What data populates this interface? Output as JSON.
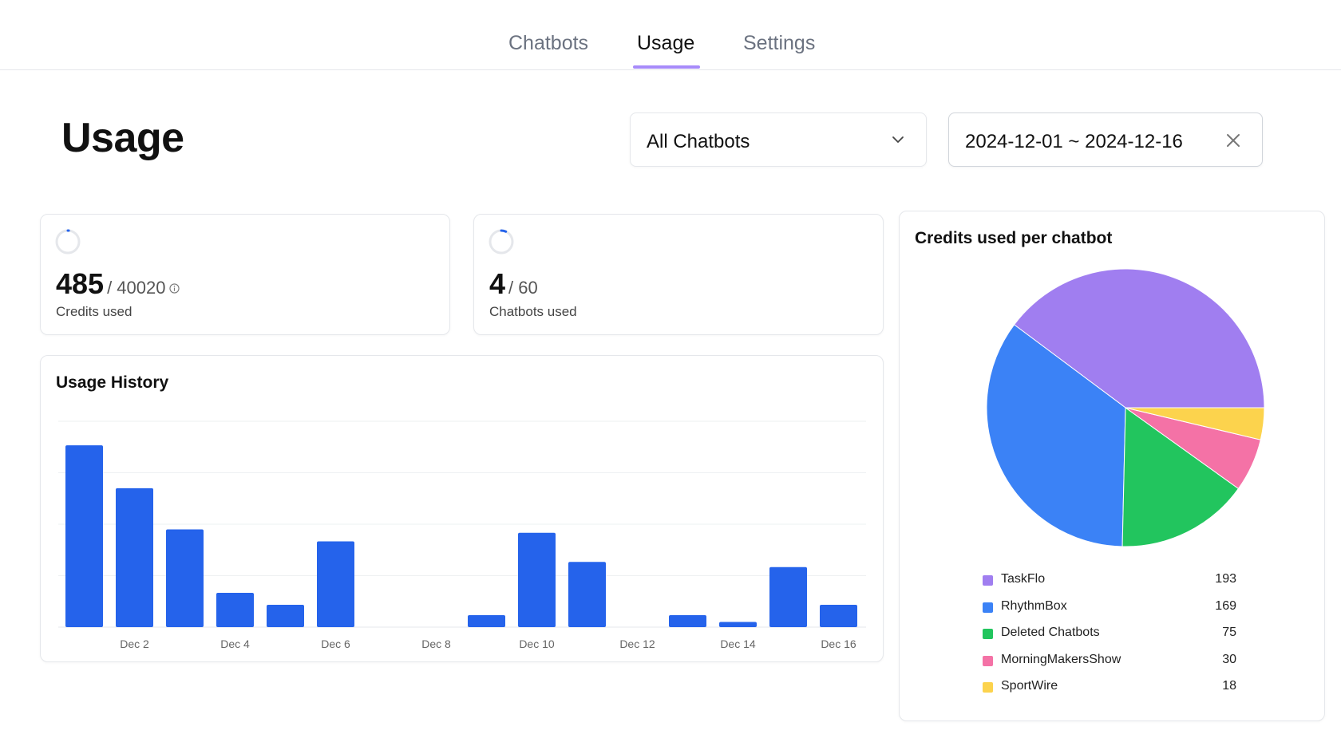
{
  "nav": {
    "tabs": [
      {
        "label": "Chatbots"
      },
      {
        "label": "Usage"
      },
      {
        "label": "Settings"
      }
    ],
    "active_tab": "Usage"
  },
  "header": {
    "title": "Usage",
    "chatbot_filter": "All Chatbots",
    "date_range": "2024-12-01 ~ 2024-12-16"
  },
  "stats": {
    "credits": {
      "value": "485",
      "total": "/ 40020",
      "label": "Credits used",
      "fraction": 0.0121
    },
    "chatbots": {
      "value": "4",
      "total": "/ 60",
      "label": "Chatbots used",
      "fraction": 0.0667
    }
  },
  "colors": {
    "bar": "#2563eb",
    "ring_track": "#e5e7eb",
    "ring_fill": "#2563eb",
    "tab_underline": "#a78bfa"
  },
  "icons": {
    "dropdown": "chevron-down-icon",
    "clear": "close-icon",
    "info": "info-icon",
    "progress": "progress-ring-icon"
  },
  "usage_history": {
    "title": "Usage History"
  },
  "credits_per_chatbot": {
    "title": "Credits used per chatbot"
  },
  "chart_data": [
    {
      "type": "bar",
      "title": "Usage History",
      "categories": [
        "Dec 1",
        "Dec 2",
        "Dec 3",
        "Dec 4",
        "Dec 5",
        "Dec 6",
        "Dec 7",
        "Dec 8",
        "Dec 9",
        "Dec 10",
        "Dec 11",
        "Dec 12",
        "Dec 13",
        "Dec 14",
        "Dec 15",
        "Dec 16"
      ],
      "tick_labels": [
        "Dec 2",
        "Dec 4",
        "Dec 6",
        "Dec 8",
        "Dec 10",
        "Dec 12",
        "Dec 14",
        "Dec 16"
      ],
      "tick_categories": [
        "Dec 2",
        "Dec 4",
        "Dec 6",
        "Dec 8",
        "Dec 10",
        "Dec 12",
        "Dec 14",
        "Dec 16"
      ],
      "values": [
        106,
        81,
        57,
        20,
        13,
        50,
        0,
        0,
        7,
        55,
        38,
        0,
        7,
        3,
        35,
        13
      ],
      "ylim": [
        0,
        120
      ],
      "grid": true,
      "yticks_visible": false
    },
    {
      "type": "pie",
      "title": "Credits used per chatbot",
      "categories": [
        "TaskFlo",
        "RhythmBox",
        "Deleted Chatbots",
        "MorningMakersShow",
        "SportWire"
      ],
      "values": [
        193,
        169,
        75,
        30,
        18
      ],
      "value_labels": [
        "193",
        "169",
        "75",
        "30",
        "18"
      ],
      "colors": [
        "#a07ef0",
        "#3b82f6",
        "#22c55e",
        "#f472a6",
        "#fcd34d"
      ],
      "legend_position": "bottom"
    }
  ]
}
